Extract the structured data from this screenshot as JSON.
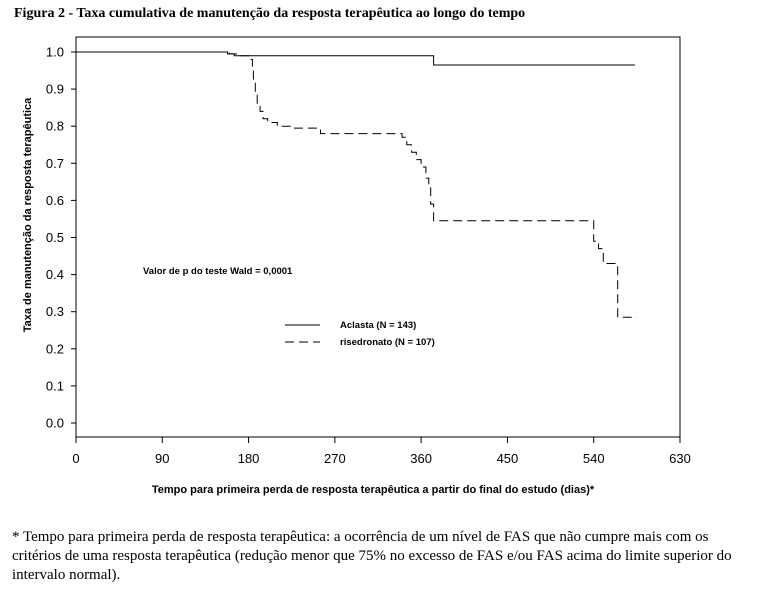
{
  "figure": {
    "title": "Figura 2 - Taxa cumulativa de manutenção da resposta terapêutica ao longo do tempo",
    "footnote": "* Tempo para primeira perda de resposta terapêutica: a ocorrência de um nível de FAS que não cumpre mais com os critérios de uma resposta terapêutica (redução menor que 75% no excesso de FAS e/ou FAS acima do limite superior do intervalo normal)."
  },
  "chart_data": {
    "type": "line",
    "title": "",
    "xlabel": "Tempo para primeira perda de resposta terapêutica a partir do final do estudo (dias)*",
    "ylabel": "Taxa de manutenção da resposta terapêutica",
    "xlim": [
      0,
      630
    ],
    "ylim": [
      0,
      1.0
    ],
    "xticks": [
      0,
      90,
      180,
      270,
      360,
      450,
      540,
      630
    ],
    "xtick_labels": [
      "0",
      "90",
      "180",
      "270",
      "360",
      "450",
      "540",
      "630"
    ],
    "yticks": [
      0.0,
      0.1,
      0.2,
      0.3,
      0.4,
      0.5,
      0.6,
      0.7,
      0.8,
      0.9,
      1.0
    ],
    "ytick_labels": [
      "0.0",
      "0.1",
      "0.2",
      "0.3",
      "0.4",
      "0.5",
      "0.6",
      "0.7",
      "0.8",
      "0.9",
      "1.0"
    ],
    "grid": false,
    "legend_position": "center",
    "annotation": "Valor de p do teste Wald = 0,0001",
    "series": [
      {
        "name": "Aclasta (N = 143)",
        "style": "solid",
        "color": "#000000",
        "x": [
          0,
          158,
          165,
          373,
          583
        ],
        "y": [
          1.0,
          0.995,
          0.99,
          0.965,
          0.965
        ]
      },
      {
        "name": "risedronato (N = 107)",
        "style": "dashed",
        "color": "#000000",
        "x": [
          0,
          160,
          168,
          182,
          184,
          185,
          187,
          189,
          192,
          195,
          200,
          210,
          225,
          255,
          340,
          345,
          350,
          355,
          360,
          365,
          368,
          370,
          373,
          540,
          545,
          550,
          565,
          585
        ],
        "y": [
          1.0,
          0.995,
          0.99,
          0.98,
          0.95,
          0.92,
          0.89,
          0.86,
          0.84,
          0.82,
          0.81,
          0.8,
          0.795,
          0.78,
          0.77,
          0.75,
          0.73,
          0.71,
          0.69,
          0.66,
          0.64,
          0.59,
          0.545,
          0.49,
          0.47,
          0.43,
          0.285,
          0.285
        ]
      }
    ]
  }
}
